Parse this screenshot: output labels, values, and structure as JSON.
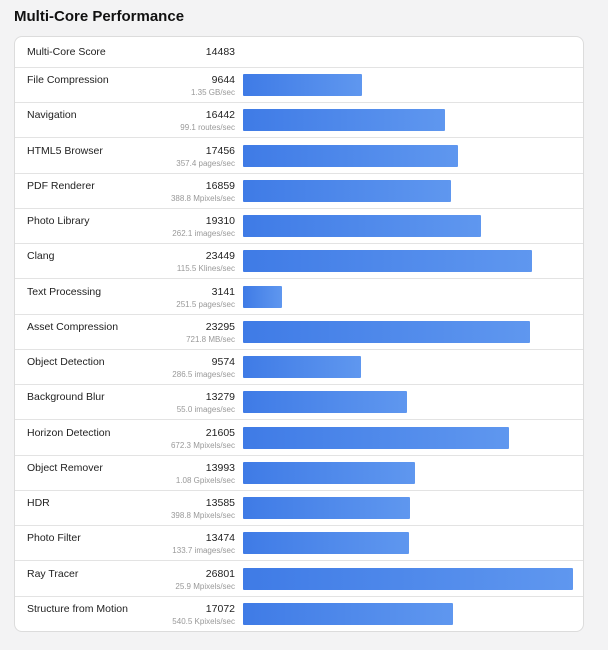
{
  "page": {
    "title": "Multi-Core Performance",
    "score_label": "Multi-Core Score",
    "score_value": "14483",
    "accent_color": "#4a86ea"
  },
  "chart_data": {
    "type": "bar",
    "title": "Multi-Core Performance",
    "orientation": "horizontal",
    "xlim": [
      0,
      26801
    ],
    "categories": [
      "File Compression",
      "Navigation",
      "HTML5 Browser",
      "PDF Renderer",
      "Photo Library",
      "Clang",
      "Text Processing",
      "Asset Compression",
      "Object Detection",
      "Background Blur",
      "Horizon Detection",
      "Object Remover",
      "HDR",
      "Photo Filter",
      "Ray Tracer",
      "Structure from Motion"
    ],
    "values": [
      9644,
      16442,
      17456,
      16859,
      19310,
      23449,
      3141,
      23295,
      9574,
      13279,
      21605,
      13993,
      13585,
      13474,
      26801,
      17072
    ],
    "rows": [
      {
        "label": "File Compression",
        "value": 9644,
        "value_text": "9644",
        "sub": "1.35 GB/sec"
      },
      {
        "label": "Navigation",
        "value": 16442,
        "value_text": "16442",
        "sub": "99.1 routes/sec"
      },
      {
        "label": "HTML5 Browser",
        "value": 17456,
        "value_text": "17456",
        "sub": "357.4 pages/sec"
      },
      {
        "label": "PDF Renderer",
        "value": 16859,
        "value_text": "16859",
        "sub": "388.8 Mpixels/sec"
      },
      {
        "label": "Photo Library",
        "value": 19310,
        "value_text": "19310",
        "sub": "262.1 images/sec"
      },
      {
        "label": "Clang",
        "value": 23449,
        "value_text": "23449",
        "sub": "115.5 Klines/sec"
      },
      {
        "label": "Text Processing",
        "value": 3141,
        "value_text": "3141",
        "sub": "251.5 pages/sec"
      },
      {
        "label": "Asset Compression",
        "value": 23295,
        "value_text": "23295",
        "sub": "721.8 MB/sec"
      },
      {
        "label": "Object Detection",
        "value": 9574,
        "value_text": "9574",
        "sub": "286.5 images/sec"
      },
      {
        "label": "Background Blur",
        "value": 13279,
        "value_text": "13279",
        "sub": "55.0 images/sec"
      },
      {
        "label": "Horizon Detection",
        "value": 21605,
        "value_text": "21605",
        "sub": "672.3 Mpixels/sec"
      },
      {
        "label": "Object Remover",
        "value": 13993,
        "value_text": "13993",
        "sub": "1.08 Gpixels/sec"
      },
      {
        "label": "HDR",
        "value": 13585,
        "value_text": "13585",
        "sub": "398.8 Mpixels/sec"
      },
      {
        "label": "Photo Filter",
        "value": 13474,
        "value_text": "13474",
        "sub": "133.7 images/sec"
      },
      {
        "label": "Ray Tracer",
        "value": 26801,
        "value_text": "26801",
        "sub": "25.9 Mpixels/sec"
      },
      {
        "label": "Structure from Motion",
        "value": 17072,
        "value_text": "17072",
        "sub": "540.5 Kpixels/sec"
      }
    ]
  }
}
